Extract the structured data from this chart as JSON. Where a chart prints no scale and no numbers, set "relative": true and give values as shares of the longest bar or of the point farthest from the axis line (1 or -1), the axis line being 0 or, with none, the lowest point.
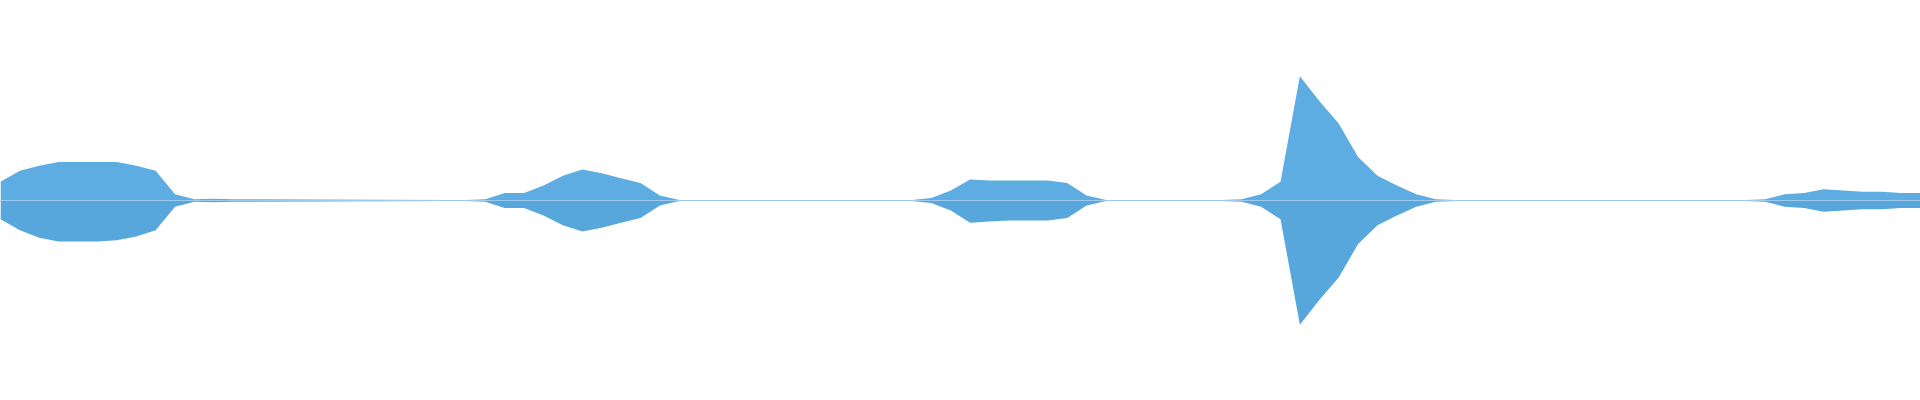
{
  "chart_data": {
    "type": "area",
    "relative": true,
    "ref_lines": [
      {
        "axis": "y",
        "value": 0,
        "color": "#9ecbed"
      }
    ],
    "categories": [
      null,
      null,
      null,
      null,
      null,
      null,
      null,
      null,
      null,
      null,
      null,
      null,
      null,
      null,
      null,
      null,
      null,
      null,
      null,
      null,
      null,
      null,
      null,
      null,
      null,
      null,
      null,
      null,
      null,
      null,
      null,
      null,
      null,
      null,
      null,
      null,
      null,
      null,
      null,
      null,
      null,
      null,
      null,
      null,
      null,
      null,
      null,
      null,
      null,
      null,
      null,
      null,
      null,
      null,
      null,
      null,
      null,
      null,
      null,
      null,
      null,
      null,
      null,
      null,
      null,
      null,
      null,
      null,
      null,
      null,
      null,
      null,
      null,
      null,
      null,
      null,
      null,
      null,
      null,
      null,
      null,
      null,
      null,
      null,
      null,
      null,
      null,
      null,
      null,
      null,
      null,
      null,
      null,
      null,
      null,
      null,
      null,
      null,
      null,
      null
    ],
    "series": [
      {
        "color": "#5dade2",
        "values": [
          0.15,
          0.24,
          0.28,
          0.31,
          0.31,
          0.31,
          0.31,
          0.28,
          0.24,
          0.05,
          0.01,
          0.015,
          0.01,
          null,
          null,
          null,
          null,
          null,
          null,
          null,
          null,
          null,
          null,
          0.005,
          0.005,
          0.01,
          0.06,
          0.06,
          0.12,
          0.2,
          0.25,
          0.22,
          0.18,
          0.14,
          0.04,
          0.005,
          0.005,
          0.005,
          0.005,
          0.005,
          0.005,
          0.005,
          0.005,
          0.005,
          0.005,
          0.005,
          0.005,
          0.005,
          0.02,
          0.08,
          0.17,
          0.16,
          0.16,
          0.16,
          0.16,
          0.14,
          0.04,
          0.005,
          0.005,
          0.005,
          0.005,
          0.005,
          0.005,
          0.005,
          0.01,
          0.05,
          0.15,
          1.0,
          0.8,
          0.62,
          0.35,
          0.2,
          0.12,
          0.05,
          0.01,
          0.005,
          0.005,
          0.005,
          0.005,
          0.005,
          0.005,
          0.005,
          0.005,
          0.005,
          0.005,
          0.005,
          0.005,
          0.005,
          0.005,
          0.005,
          0.005,
          0.01,
          0.05,
          0.06,
          0.09,
          0.08,
          0.07,
          0.07,
          0.06,
          0.06
        ]
      },
      {
        "color": "#57a6dc",
        "values": [
          -0.15,
          -0.24,
          -0.3,
          -0.33,
          -0.33,
          -0.33,
          -0.32,
          -0.29,
          -0.24,
          -0.05,
          -0.01,
          -0.015,
          -0.01,
          null,
          null,
          null,
          null,
          null,
          null,
          null,
          null,
          null,
          null,
          -0.005,
          -0.005,
          -0.01,
          -0.06,
          -0.06,
          -0.12,
          -0.2,
          -0.25,
          -0.22,
          -0.18,
          -0.14,
          -0.04,
          -0.005,
          -0.005,
          -0.005,
          -0.005,
          -0.005,
          -0.005,
          -0.005,
          -0.005,
          -0.005,
          -0.005,
          -0.005,
          -0.005,
          -0.005,
          -0.02,
          -0.08,
          -0.18,
          -0.17,
          -0.16,
          -0.16,
          -0.16,
          -0.14,
          -0.04,
          -0.005,
          -0.005,
          -0.005,
          -0.005,
          -0.005,
          -0.005,
          -0.005,
          -0.01,
          -0.05,
          -0.15,
          -1.0,
          -0.8,
          -0.62,
          -0.35,
          -0.2,
          -0.12,
          -0.05,
          -0.01,
          -0.005,
          -0.005,
          -0.005,
          -0.005,
          -0.005,
          -0.005,
          -0.005,
          -0.005,
          -0.005,
          -0.005,
          -0.005,
          -0.005,
          -0.005,
          -0.005,
          -0.005,
          -0.005,
          -0.01,
          -0.05,
          -0.06,
          -0.09,
          -0.08,
          -0.07,
          -0.07,
          -0.06,
          -0.06
        ]
      }
    ]
  }
}
